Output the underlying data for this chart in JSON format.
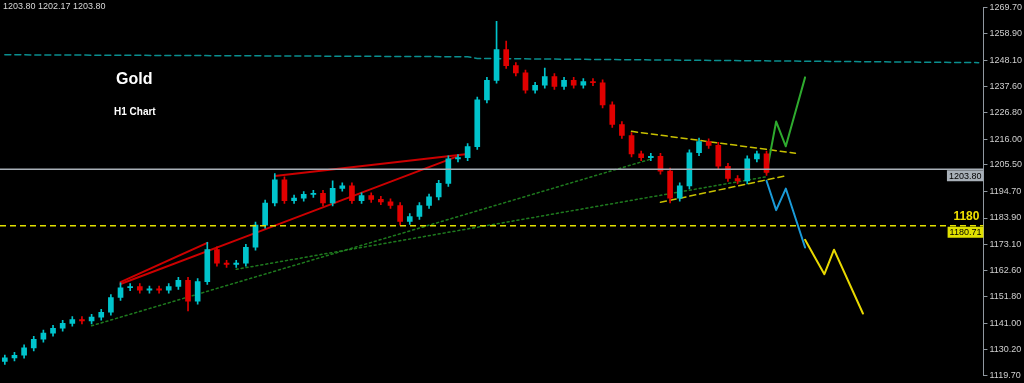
{
  "chart_data": {
    "type": "candlestick",
    "title": "Gold",
    "subtitle": "H1 Chart",
    "categories": [
      null,
      null,
      null,
      null,
      null,
      null,
      null,
      null,
      null,
      null,
      null,
      null,
      null,
      null,
      null,
      null,
      null,
      null,
      null,
      null,
      null,
      null,
      null,
      null,
      null,
      null,
      null,
      null,
      null,
      null,
      null,
      null,
      null,
      null,
      null,
      null,
      null,
      null,
      null,
      null,
      null,
      null,
      null,
      null,
      null,
      null,
      null,
      null,
      null,
      null,
      null,
      null,
      null,
      null,
      null,
      null,
      null,
      null,
      null,
      null,
      null,
      null,
      null,
      null,
      null,
      null,
      null,
      null,
      null,
      null,
      null,
      null,
      null,
      null,
      null,
      null,
      null,
      null,
      null,
      null,
      null,
      null,
      null,
      null,
      null,
      null,
      null,
      null,
      null,
      null,
      null,
      null,
      null,
      null,
      null,
      null,
      null,
      null,
      null,
      null,
      null,
      null
    ],
    "ohlc": [
      [
        1125.5,
        1128.1,
        1124.3,
        1126.9
      ],
      [
        1126.9,
        1129.2,
        1125.7,
        1128.0
      ],
      [
        1128.0,
        1132.2,
        1126.8,
        1131.0
      ],
      [
        1131.0,
        1135.7,
        1129.8,
        1134.5
      ],
      [
        1134.5,
        1138.2,
        1133.3,
        1137.0
      ],
      [
        1137.0,
        1140.2,
        1135.8,
        1139.0
      ],
      [
        1139.0,
        1142.2,
        1137.8,
        1141.0
      ],
      [
        1141.0,
        1143.7,
        1139.8,
        1142.5
      ],
      [
        1142.5,
        1143.7,
        1140.8,
        1142.0
      ],
      [
        1142.0,
        1144.7,
        1140.8,
        1143.5
      ],
      [
        1143.5,
        1146.7,
        1142.3,
        1145.5
      ],
      [
        1145.5,
        1152.7,
        1144.3,
        1151.5
      ],
      [
        1151.5,
        1157.5,
        1150.3,
        1155.5
      ],
      [
        1155.5,
        1157.2,
        1154.3,
        1156.0
      ],
      [
        1156.0,
        1157.2,
        1153.3,
        1154.5
      ],
      [
        1154.5,
        1156.2,
        1153.3,
        1155.0
      ],
      [
        1155.0,
        1156.2,
        1153.3,
        1154.5
      ],
      [
        1154.5,
        1157.2,
        1153.3,
        1156.0
      ],
      [
        1156.0,
        1159.7,
        1154.8,
        1158.5
      ],
      [
        1158.5,
        1159.7,
        1146.0,
        1150.0
      ],
      [
        1150.0,
        1159.2,
        1148.8,
        1158.0
      ],
      [
        1158.0,
        1174.0,
        1156.8,
        1171.0
      ],
      [
        1171.0,
        1172.2,
        1164.3,
        1165.5
      ],
      [
        1165.5,
        1166.7,
        1163.8,
        1165.0
      ],
      [
        1165.0,
        1166.7,
        1163.8,
        1165.5
      ],
      [
        1165.5,
        1173.2,
        1164.3,
        1172.0
      ],
      [
        1172.0,
        1182.2,
        1170.8,
        1181.0
      ],
      [
        1181.0,
        1191.2,
        1179.8,
        1190.0
      ],
      [
        1190.0,
        1202.0,
        1188.8,
        1199.5
      ],
      [
        1199.5,
        1200.7,
        1189.8,
        1191.0
      ],
      [
        1191.0,
        1193.2,
        1189.8,
        1192.0
      ],
      [
        1192.0,
        1194.7,
        1190.8,
        1193.5
      ],
      [
        1193.5,
        1195.2,
        1192.3,
        1194.0
      ],
      [
        1194.0,
        1195.2,
        1188.8,
        1190.0
      ],
      [
        1190.0,
        1199.0,
        1188.8,
        1196.0
      ],
      [
        1196.0,
        1198.2,
        1194.8,
        1197.0
      ],
      [
        1197.0,
        1198.2,
        1189.8,
        1191.0
      ],
      [
        1191.0,
        1194.2,
        1189.8,
        1193.0
      ],
      [
        1193.0,
        1194.2,
        1190.3,
        1191.5
      ],
      [
        1191.5,
        1192.7,
        1189.3,
        1190.5
      ],
      [
        1190.5,
        1191.7,
        1187.8,
        1189.0
      ],
      [
        1189.0,
        1190.2,
        1181.0,
        1182.5
      ],
      [
        1182.5,
        1185.7,
        1181.3,
        1184.5
      ],
      [
        1184.5,
        1190.2,
        1183.3,
        1189.0
      ],
      [
        1189.0,
        1193.7,
        1187.8,
        1192.5
      ],
      [
        1192.5,
        1199.2,
        1191.3,
        1198.0
      ],
      [
        1198.0,
        1209.2,
        1196.8,
        1208.0
      ],
      [
        1208.0,
        1209.7,
        1206.8,
        1208.5
      ],
      [
        1208.5,
        1214.2,
        1207.3,
        1213.0
      ],
      [
        1213.0,
        1233.2,
        1211.8,
        1232.0
      ],
      [
        1232.0,
        1241.2,
        1230.8,
        1240.0
      ],
      [
        1240.0,
        1264.0,
        1238.8,
        1252.5
      ],
      [
        1252.5,
        1256.0,
        1244.8,
        1246.0
      ],
      [
        1246.0,
        1247.2,
        1241.8,
        1243.0
      ],
      [
        1243.0,
        1244.2,
        1234.8,
        1236.0
      ],
      [
        1236.0,
        1239.2,
        1234.8,
        1238.0
      ],
      [
        1238.0,
        1245.0,
        1236.8,
        1241.5
      ],
      [
        1241.5,
        1242.7,
        1236.3,
        1237.5
      ],
      [
        1237.5,
        1241.2,
        1236.3,
        1240.0
      ],
      [
        1240.0,
        1241.2,
        1236.8,
        1238.0
      ],
      [
        1238.0,
        1240.7,
        1236.8,
        1239.5
      ],
      [
        1239.5,
        1240.7,
        1237.8,
        1239.0
      ],
      [
        1239.0,
        1240.2,
        1228.8,
        1230.0
      ],
      [
        1230.0,
        1231.2,
        1220.8,
        1222.0
      ],
      [
        1222.0,
        1223.2,
        1216.3,
        1217.5
      ],
      [
        1217.5,
        1218.7,
        1208.8,
        1210.0
      ],
      [
        1210.0,
        1211.2,
        1207.3,
        1208.5
      ],
      [
        1208.5,
        1210.2,
        1207.3,
        1209.0
      ],
      [
        1209.0,
        1210.2,
        1201.8,
        1203.0
      ],
      [
        1203.0,
        1204.2,
        1190.0,
        1192.0
      ],
      [
        1192.0,
        1198.2,
        1190.8,
        1197.0
      ],
      [
        1197.0,
        1211.7,
        1195.8,
        1210.5
      ],
      [
        1210.5,
        1216.5,
        1209.3,
        1215.0
      ],
      [
        1215.0,
        1216.2,
        1212.3,
        1213.5
      ],
      [
        1213.5,
        1214.7,
        1203.8,
        1205.0
      ],
      [
        1205.0,
        1206.2,
        1198.8,
        1200.0
      ],
      [
        1200.0,
        1201.2,
        1197.8,
        1199.0
      ],
      [
        1199.0,
        1209.2,
        1197.8,
        1208.0
      ],
      [
        1208.0,
        1211.2,
        1206.8,
        1210.0
      ],
      [
        1210.0,
        1211.2,
        1201.3,
        1202.5
      ],
      null,
      null,
      null,
      null,
      null,
      null,
      null,
      null,
      null,
      null,
      null,
      null,
      null,
      null,
      null,
      null,
      null,
      null,
      null,
      null,
      null,
      null
    ],
    "series": [
      {
        "type": "line",
        "color": "#0a8f8f",
        "line_style": "dashed",
        "values": [
          1250.4,
          null,
          null,
          null,
          null,
          null,
          null,
          null,
          null,
          null,
          null,
          null,
          null,
          null,
          null,
          null,
          null,
          null,
          null,
          null,
          null,
          null,
          null,
          null,
          null,
          null,
          null,
          null,
          null,
          null,
          null,
          null,
          null,
          null,
          null,
          null,
          null,
          null,
          null,
          null,
          null,
          null,
          null,
          null,
          null,
          null,
          null,
          null,
          1249.6,
          1248.9,
          null,
          null,
          null,
          null,
          null,
          null,
          null,
          null,
          null,
          null,
          null,
          null,
          null,
          null,
          null,
          null,
          null,
          null,
          null,
          null,
          null,
          null,
          null,
          null,
          null,
          null,
          null,
          null,
          null,
          null,
          null,
          null,
          null,
          null,
          null,
          null,
          null,
          null,
          null,
          null,
          null,
          null,
          null,
          null,
          null,
          null,
          null,
          null,
          null,
          null,
          null,
          1247.2
        ]
      },
      {
        "type": "line",
        "color": "#2eaa2e",
        "line_style": "solid",
        "values": [
          null,
          null,
          null,
          null,
          null,
          null,
          null,
          null,
          null,
          null,
          null,
          null,
          null,
          null,
          null,
          null,
          null,
          null,
          null,
          null,
          null,
          null,
          null,
          null,
          null,
          null,
          null,
          null,
          null,
          null,
          null,
          null,
          null,
          null,
          null,
          null,
          null,
          null,
          null,
          null,
          null,
          null,
          null,
          null,
          null,
          null,
          null,
          null,
          null,
          null,
          null,
          null,
          null,
          null,
          null,
          null,
          null,
          null,
          null,
          null,
          null,
          null,
          null,
          null,
          null,
          null,
          null,
          null,
          null,
          null,
          null,
          null,
          null,
          null,
          null,
          null,
          null,
          null,
          null,
          1202.3,
          1223.2,
          1213.1,
          null,
          1241.2,
          null,
          null,
          null,
          null,
          null,
          null,
          null,
          null,
          null,
          null,
          null,
          null,
          null,
          null,
          null,
          null,
          null,
          null
        ]
      },
      {
        "type": "line",
        "color": "#1a9ad8",
        "line_style": "solid",
        "values": [
          null,
          null,
          null,
          null,
          null,
          null,
          null,
          null,
          null,
          null,
          null,
          null,
          null,
          null,
          null,
          null,
          null,
          null,
          null,
          null,
          null,
          null,
          null,
          null,
          null,
          null,
          null,
          null,
          null,
          null,
          null,
          null,
          null,
          null,
          null,
          null,
          null,
          null,
          null,
          null,
          null,
          null,
          null,
          null,
          null,
          null,
          null,
          null,
          null,
          null,
          null,
          null,
          null,
          null,
          null,
          null,
          null,
          null,
          null,
          null,
          null,
          null,
          null,
          null,
          null,
          null,
          null,
          null,
          null,
          null,
          null,
          null,
          null,
          null,
          null,
          null,
          null,
          null,
          null,
          1199.1,
          1187.1,
          1195.9,
          null,
          1171.9,
          null,
          null,
          null,
          null,
          null,
          null,
          null,
          null,
          null,
          null,
          null,
          null,
          null,
          null,
          null,
          null,
          null,
          null
        ]
      },
      {
        "type": "line",
        "color": "#e8d800",
        "line_style": "solid",
        "values": [
          null,
          null,
          null,
          null,
          null,
          null,
          null,
          null,
          null,
          null,
          null,
          null,
          null,
          null,
          null,
          null,
          null,
          null,
          null,
          null,
          null,
          null,
          null,
          null,
          null,
          null,
          null,
          null,
          null,
          null,
          null,
          null,
          null,
          null,
          null,
          null,
          null,
          null,
          null,
          null,
          null,
          null,
          null,
          null,
          null,
          null,
          null,
          null,
          null,
          null,
          null,
          null,
          null,
          null,
          null,
          null,
          null,
          null,
          null,
          null,
          null,
          null,
          null,
          null,
          null,
          null,
          null,
          null,
          null,
          null,
          null,
          null,
          null,
          null,
          null,
          null,
          null,
          null,
          null,
          null,
          null,
          null,
          null,
          1175.0,
          null,
          1161.0,
          1171.0,
          null,
          null,
          1145.0,
          null,
          null,
          null,
          null,
          null,
          null,
          null,
          null,
          null,
          null,
          null,
          null
        ]
      },
      {
        "type": "line",
        "color": "#c8c000",
        "line_style": "dashed",
        "values": [
          null,
          null,
          null,
          null,
          null,
          null,
          null,
          null,
          null,
          null,
          null,
          null,
          null,
          null,
          null,
          null,
          null,
          null,
          null,
          null,
          null,
          null,
          null,
          null,
          null,
          null,
          null,
          null,
          null,
          null,
          null,
          null,
          null,
          null,
          null,
          null,
          null,
          null,
          null,
          null,
          null,
          null,
          null,
          null,
          null,
          null,
          null,
          null,
          null,
          null,
          null,
          null,
          null,
          null,
          null,
          null,
          null,
          null,
          null,
          null,
          null,
          null,
          null,
          null,
          null,
          1219.2,
          null,
          null,
          null,
          null,
          null,
          null,
          null,
          null,
          null,
          null,
          null,
          null,
          null,
          null,
          null,
          null,
          1210.3,
          null,
          null,
          null,
          null,
          null,
          null,
          null,
          null,
          null,
          null,
          null,
          null,
          null,
          null,
          null,
          null,
          null,
          null,
          null
        ]
      },
      {
        "type": "line",
        "color": "#c8c000",
        "line_style": "dashed",
        "values": [
          null,
          null,
          null,
          null,
          null,
          null,
          null,
          null,
          null,
          null,
          null,
          null,
          null,
          null,
          null,
          null,
          null,
          null,
          null,
          null,
          null,
          null,
          null,
          null,
          null,
          null,
          null,
          null,
          null,
          null,
          null,
          null,
          null,
          null,
          null,
          null,
          null,
          null,
          null,
          null,
          null,
          null,
          null,
          null,
          null,
          null,
          null,
          null,
          null,
          null,
          null,
          null,
          null,
          null,
          null,
          null,
          null,
          null,
          null,
          null,
          null,
          null,
          null,
          null,
          null,
          null,
          null,
          null,
          1190.3,
          null,
          null,
          null,
          null,
          null,
          null,
          null,
          null,
          null,
          null,
          null,
          null,
          1201.1,
          null,
          null,
          null,
          null,
          null,
          null,
          null,
          null,
          null,
          null,
          null,
          null,
          null,
          null,
          null,
          null,
          null,
          null,
          null,
          null
        ]
      },
      {
        "type": "line",
        "color": "#cc0000",
        "line_style": "solid",
        "values": [
          null,
          null,
          null,
          null,
          null,
          null,
          null,
          null,
          null,
          null,
          null,
          null,
          1157.0,
          null,
          null,
          null,
          null,
          null,
          null,
          null,
          null,
          null,
          null,
          null,
          null,
          null,
          null,
          null,
          null,
          null,
          null,
          null,
          null,
          null,
          null,
          null,
          null,
          null,
          null,
          null,
          null,
          null,
          null,
          null,
          null,
          null,
          null,
          1209.1,
          null,
          null,
          null,
          null,
          null,
          null,
          null,
          null,
          null,
          null,
          null,
          null,
          null,
          null,
          null,
          null,
          null,
          null,
          null,
          null,
          null,
          null,
          null,
          null,
          null,
          null,
          null,
          null,
          null,
          null,
          null,
          null,
          null,
          null,
          null,
          null,
          null,
          null,
          null,
          null,
          null,
          null,
          null,
          null,
          null,
          null,
          null,
          null,
          null,
          null,
          null,
          null,
          null,
          null
        ]
      },
      {
        "type": "line",
        "color": "#cc0000",
        "line_style": "solid",
        "values": [
          null,
          null,
          null,
          null,
          null,
          null,
          null,
          null,
          null,
          null,
          null,
          null,
          null,
          null,
          null,
          null,
          null,
          null,
          null,
          null,
          null,
          null,
          null,
          null,
          null,
          null,
          null,
          null,
          1201.0,
          null,
          null,
          null,
          null,
          null,
          null,
          null,
          null,
          null,
          null,
          null,
          null,
          null,
          null,
          null,
          null,
          null,
          null,
          null,
          1210.0,
          null,
          null,
          null,
          null,
          null,
          null,
          null,
          null,
          null,
          null,
          null,
          null,
          null,
          null,
          null,
          null,
          null,
          null,
          null,
          null,
          null,
          null,
          null,
          null,
          null,
          null,
          null,
          null,
          null,
          null,
          null,
          null,
          null,
          null,
          null,
          null,
          null,
          null,
          null,
          null,
          null,
          null,
          null,
          null,
          null,
          null,
          null,
          null,
          null,
          null,
          null,
          null,
          null
        ]
      },
      {
        "type": "line",
        "color": "#cc0000",
        "line_style": "solid",
        "values": [
          null,
          null,
          null,
          null,
          null,
          null,
          null,
          null,
          null,
          null,
          null,
          null,
          1157.8,
          null,
          null,
          null,
          null,
          null,
          null,
          null,
          null,
          1173.8,
          null,
          null,
          null,
          null,
          null,
          null,
          null,
          null,
          null,
          null,
          null,
          null,
          null,
          null,
          null,
          null,
          null,
          null,
          null,
          null,
          null,
          null,
          null,
          null,
          null,
          null,
          null,
          null,
          null,
          null,
          null,
          null,
          null,
          null,
          null,
          null,
          null,
          null,
          null,
          null,
          null,
          null,
          null,
          null,
          null,
          null,
          null,
          null,
          null,
          null,
          null,
          null,
          null,
          null,
          null,
          null,
          null,
          null,
          null,
          null,
          null,
          null,
          null,
          null,
          null,
          null,
          null,
          null,
          null,
          null,
          null,
          null,
          null,
          null,
          null,
          null,
          null,
          null,
          null,
          null
        ]
      },
      {
        "type": "line",
        "color": "#1e7a1e",
        "line_style": "dotted",
        "values": [
          null,
          null,
          null,
          null,
          null,
          null,
          null,
          null,
          null,
          1140.0,
          null,
          null,
          null,
          null,
          null,
          null,
          null,
          null,
          null,
          null,
          null,
          null,
          null,
          null,
          null,
          null,
          null,
          null,
          null,
          null,
          null,
          null,
          null,
          null,
          null,
          null,
          null,
          null,
          null,
          null,
          null,
          null,
          null,
          null,
          null,
          null,
          null,
          null,
          null,
          null,
          null,
          null,
          null,
          null,
          null,
          null,
          null,
          null,
          null,
          null,
          null,
          null,
          null,
          null,
          null,
          null,
          null,
          1207.9,
          null,
          null,
          null,
          null,
          null,
          null,
          null,
          null,
          null,
          null,
          null,
          null,
          null,
          null,
          null,
          null,
          null,
          null,
          null,
          null,
          null,
          null,
          null,
          null,
          null,
          null,
          null,
          null,
          null,
          null,
          null,
          null,
          null,
          null
        ]
      },
      {
        "type": "line",
        "color": "#1e7a1e",
        "line_style": "dotted",
        "values": [
          null,
          null,
          null,
          null,
          null,
          null,
          null,
          null,
          null,
          null,
          null,
          null,
          null,
          null,
          null,
          null,
          null,
          null,
          null,
          null,
          null,
          null,
          null,
          null,
          1163.0,
          null,
          null,
          null,
          null,
          null,
          null,
          null,
          null,
          null,
          null,
          null,
          null,
          null,
          null,
          null,
          null,
          null,
          null,
          null,
          null,
          null,
          null,
          null,
          null,
          null,
          null,
          null,
          null,
          null,
          null,
          null,
          null,
          null,
          null,
          null,
          null,
          null,
          null,
          null,
          null,
          null,
          null,
          null,
          null,
          null,
          null,
          null,
          null,
          null,
          null,
          null,
          null,
          null,
          null,
          1200.7,
          null,
          null,
          null,
          null,
          null,
          null,
          null,
          null,
          null,
          null,
          null,
          null,
          null,
          null,
          null,
          null,
          null,
          null,
          null,
          null,
          null,
          null
        ]
      }
    ],
    "ylim": [
      1119.7,
      1269.7
    ],
    "yticks": [
      {
        "value": 1119.7,
        "label": "1119.70"
      },
      {
        "value": 1130.2,
        "label": "1130.20"
      },
      {
        "value": 1141.0,
        "label": "1141.00"
      },
      {
        "value": 1151.8,
        "label": "1151.80"
      },
      {
        "value": 1162.6,
        "label": "1162.60"
      },
      {
        "value": 1173.1,
        "label": "1173.10"
      },
      {
        "value": 1183.9,
        "label": "1183.90"
      },
      {
        "value": 1194.7,
        "label": "1194.70"
      },
      {
        "value": 1205.5,
        "label": "1205.50"
      },
      {
        "value": 1216.0,
        "label": "1216.00"
      },
      {
        "value": 1226.8,
        "label": "1226.80"
      },
      {
        "value": 1237.6,
        "label": "1237.60"
      },
      {
        "value": 1248.1,
        "label": "1248.10"
      },
      {
        "value": 1258.9,
        "label": "1258.90"
      },
      {
        "value": 1269.7,
        "label": "1269.70"
      }
    ],
    "ref_lines": [
      {
        "axis": "y",
        "value": 1203.8,
        "label": "1203.80",
        "color": "#a8b0b8",
        "line_style": "solid"
      },
      {
        "axis": "y",
        "value": 1180.71,
        "label": "1180.71",
        "color": "#e0e000",
        "line_style": "dashed"
      }
    ],
    "annotations": [
      "1203.80 1202.17 1203.80",
      {
        "text": "1180",
        "y": 1180.71
      }
    ],
    "grid": false,
    "legend": false,
    "marker": "none",
    "tick_labels": "y"
  }
}
